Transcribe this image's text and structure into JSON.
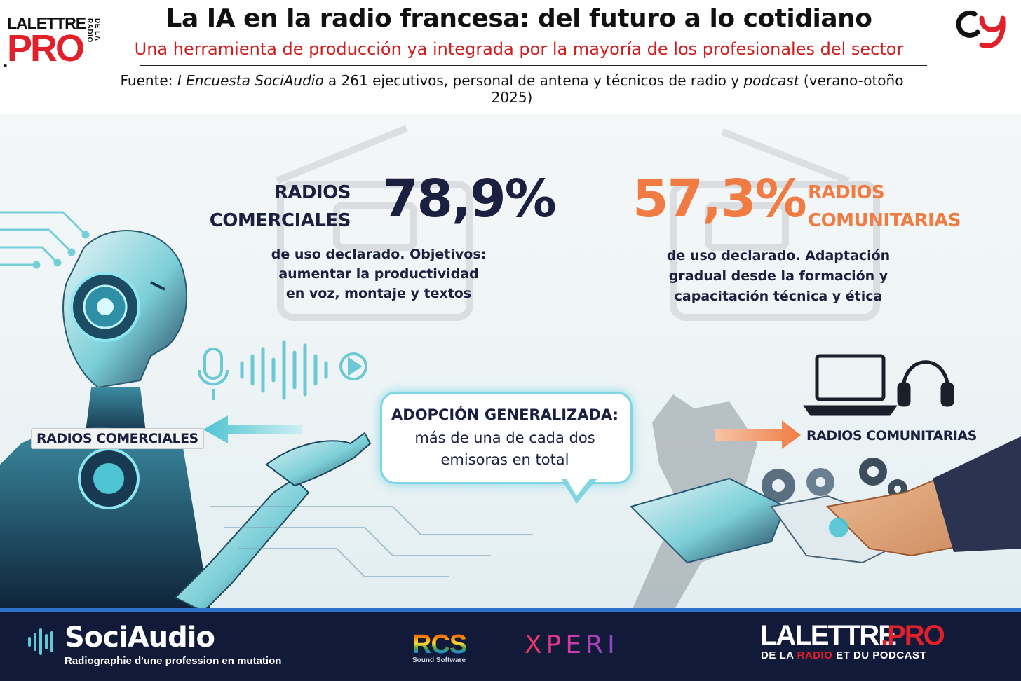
{
  "header": {
    "title": "La IA en la radio francesa: del futuro a lo cotidiano",
    "subtitle": "Una herramienta de producción ya integrada por la mayoría de los profesionales del sector",
    "source_prefix": "Fuente: ",
    "source_survey": "I Encuesta SociAudio",
    "source_mid": " a 261 ejecutivos, personal de antena y técnicos de radio y ",
    "source_podcast": "podcast",
    "source_suffix": " (verano-otoño 2025)"
  },
  "logo_left": {
    "line1": "LALETTRE",
    "line2": "PRO",
    "dot": ".",
    "side": "DE LA RADIO"
  },
  "commercial": {
    "head_line1": "RADIOS",
    "head_line2": "COMERCIALES",
    "percentage": "78,9%",
    "desc_line1": "de uso declarado. Objetivos:",
    "desc_line2": "aumentar la productividad",
    "desc_line3": "en voz, montaje y textos",
    "label": "RADIOS COMERCIALES"
  },
  "community": {
    "head_line1": "RADIOS",
    "head_line2": "COMUNITARIAS",
    "percentage": "57,3%",
    "desc_line1": "de uso declarado. Adaptación",
    "desc_line2": "gradual desde la formación y",
    "desc_line3": "capacitación técnica y ética",
    "label": "RADIOS COMUNITARIAS"
  },
  "bubble": {
    "head": "ADOPCIÓN GENERALIZADA:",
    "line1": "más de una de cada dos",
    "line2": "emisoras en total"
  },
  "footer": {
    "sociaudio_name": "SociAudio",
    "sociaudio_tagline": "Radiographie d'une profession en mutation",
    "rcs_name": "RCS",
    "rcs_sub": "Sound Software",
    "xperi_name": "XPERI",
    "lalettre_a": "LALETTRE",
    "lalettre_b": ".PRO",
    "lalettre_sub_1": "DE LA ",
    "lalettre_sub_2": "RADIO",
    "lalettre_sub_3": " ET DU PODCAST"
  },
  "colors": {
    "navy": "#1c2040",
    "orange": "#f07c44",
    "red": "#d01c1c",
    "cyan": "#7fd6e2",
    "footer_bg": "#121a3a"
  },
  "icons": [
    "robot-illustration",
    "microphone-icon",
    "soundwave-icon",
    "play-icon",
    "laptop-icon",
    "headphones-icon",
    "gears-icon",
    "handshake-illustration",
    "left-arrow-icon",
    "right-arrow-icon",
    "radio-outline-icon"
  ]
}
